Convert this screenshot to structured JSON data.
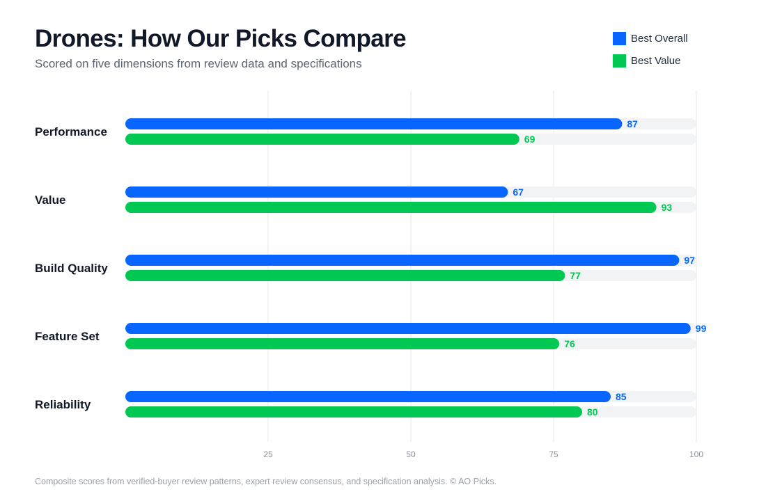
{
  "header": {
    "title": "Drones: How Our Picks Compare",
    "subtitle": "Scored on five dimensions from review data and specifications"
  },
  "legend": [
    {
      "label": "Best Overall",
      "color": "#0866ff"
    },
    {
      "label": "Best Value",
      "color": "#00c853"
    }
  ],
  "footer": {
    "note": "Composite scores from verified-buyer review patterns, expert review consensus, and specification analysis. © AO Picks."
  },
  "chart_data": {
    "type": "bar",
    "orientation": "horizontal",
    "categories": [
      "Performance",
      "Value",
      "Build Quality",
      "Feature Set",
      "Reliability"
    ],
    "series": [
      {
        "name": "Best Overall",
        "color": "#0866ff",
        "values": [
          87,
          67,
          97,
          99,
          85
        ]
      },
      {
        "name": "Best Value",
        "color": "#00c853",
        "values": [
          69,
          93,
          77,
          76,
          80
        ]
      }
    ],
    "xlim": [
      0,
      100
    ],
    "xticks": [
      25,
      50,
      75,
      100
    ],
    "grid": true,
    "track_color": "#f2f3f5",
    "legend_position": "top-right",
    "data_labels": true
  }
}
